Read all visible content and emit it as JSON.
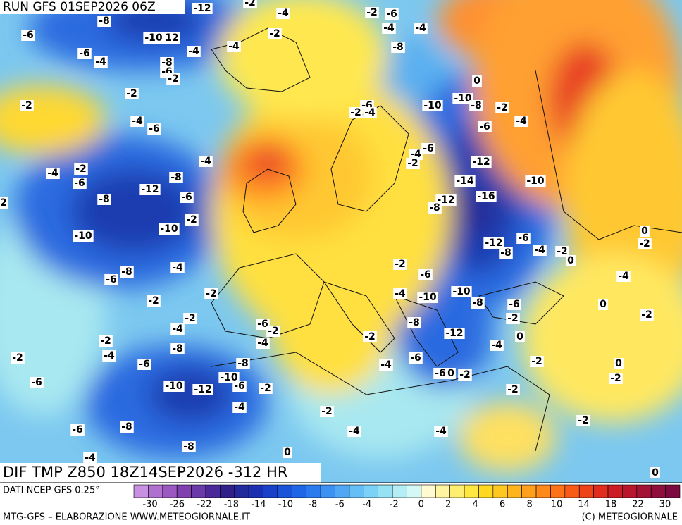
{
  "header": {
    "run": "RUN GFS 01SEP2026 06Z"
  },
  "map": {
    "caption": "DIF TMP Z850 18Z14SEP2026 -312 HR",
    "contour_labels": [
      "-12",
      "-2",
      "-4",
      "-2",
      "-6",
      "-4",
      "-4",
      "-8",
      "-6",
      "-2",
      "-10",
      "12",
      "-4",
      "-6",
      "-4",
      "-4",
      "-8",
      "-8",
      "-6",
      "-2",
      "0",
      "-2",
      "-2",
      "-10",
      "-8",
      "-10",
      "-2",
      "-6",
      "-2",
      "-4",
      "-4",
      "-6",
      "-6",
      "-4",
      "-6",
      "-4",
      "-2",
      "-4",
      "-4",
      "-2",
      "-12",
      "-6",
      "-8",
      "-14",
      "-10",
      "-12",
      "-6",
      "-16",
      "-8",
      "-12",
      "-8",
      "2",
      "-2",
      "-10",
      "-10",
      "-12",
      "-6",
      "-8",
      "-4",
      "-2",
      "0",
      "0",
      "-2",
      "-4",
      "-8",
      "-6",
      "-2",
      "-6",
      "-4",
      "-2",
      "-10",
      "-4",
      "-10",
      "-2",
      "-8",
      "-6",
      "0",
      "-6",
      "-2",
      "-2",
      "-4",
      "-2",
      "-2",
      "-8",
      "-12",
      "-2",
      "-4",
      "-2",
      "-8",
      "0",
      "-4",
      "-4",
      "-6",
      "-2",
      "-8",
      "-4",
      "-6",
      "-2",
      "0",
      "-6",
      "0",
      "-2",
      "-10",
      "-2",
      "-6",
      "-10",
      "-12",
      "-6",
      "-2",
      "-2",
      "-4",
      "-2",
      "-2",
      "-8",
      "-6",
      "-4",
      "-4",
      "-8",
      "0",
      "-4",
      "0"
    ]
  },
  "footer": {
    "source": "DATI NCEP GFS 0.25°",
    "credit": "MTG-GFS – ELABORAZIONE WWW.METEOGIORNALE.IT",
    "copyright": "(C) METEOGIORNALE"
  },
  "legend": {
    "colors": [
      "#c890e0",
      "#b070d0",
      "#9a58c0",
      "#8040b0",
      "#6a3aa8",
      "#4a2a98",
      "#30208a",
      "#222a9c",
      "#1a30b0",
      "#1840c8",
      "#1a52d8",
      "#1e66e6",
      "#2a7cee",
      "#3c92f2",
      "#50a8f4",
      "#66bef6",
      "#7cd2f6",
      "#96e2f4",
      "#b4eef4",
      "#d4f8f6",
      "#fffad0",
      "#fff4a0",
      "#ffee70",
      "#ffe640",
      "#ffd820",
      "#ffc820",
      "#ffb41e",
      "#ffa01c",
      "#ff8a1a",
      "#ff7218",
      "#f85a18",
      "#ee4218",
      "#e02c1c",
      "#cc1c24",
      "#b8162c",
      "#a41234",
      "#900e3c",
      "#7c0a40"
    ],
    "ticks": [
      -30,
      -26,
      -22,
      -18,
      -14,
      -10,
      -8,
      -6,
      -4,
      -2,
      0,
      2,
      4,
      6,
      8,
      10,
      14,
      18,
      22,
      30
    ]
  }
}
